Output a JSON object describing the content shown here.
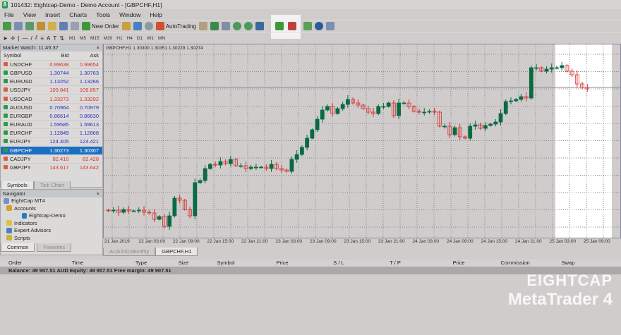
{
  "window": {
    "title": "101432: Eightcap-Demo - Demo Account - [GBPCHF,H1]"
  },
  "menu": [
    "File",
    "View",
    "Insert",
    "Charts",
    "Tools",
    "Window",
    "Help"
  ],
  "toolbar": {
    "new_order": "New Order",
    "autotrading": "AutoTrading",
    "timeframes": [
      "M1",
      "M5",
      "M15",
      "M30",
      "H1",
      "H4",
      "D1",
      "W1",
      "MN"
    ]
  },
  "market_watch": {
    "title": "Market Watch: 11:45:37",
    "columns": [
      "Symbol",
      "Bid",
      "Ask"
    ],
    "rows": [
      {
        "symbol": "USDCHF",
        "bid": "0.99638",
        "ask": "0.99654",
        "dir": "down"
      },
      {
        "symbol": "GBPUSD",
        "bid": "1.30744",
        "ask": "1.30763",
        "dir": "up"
      },
      {
        "symbol": "EURUSD",
        "bid": "1.13252",
        "ask": "1.13266",
        "dir": "up"
      },
      {
        "symbol": "USDJPY",
        "bid": "109.841",
        "ask": "109.857",
        "dir": "down"
      },
      {
        "symbol": "USDCAD",
        "bid": "1.33273",
        "ask": "1.33292",
        "dir": "down"
      },
      {
        "symbol": "AUDUSD",
        "bid": "0.70964",
        "ask": "0.70979",
        "dir": "up"
      },
      {
        "symbol": "EURGBP",
        "bid": "0.86614",
        "ask": "0.86630",
        "dir": "up"
      },
      {
        "symbol": "EURAUD",
        "bid": "1.59585",
        "ask": "1.59613",
        "dir": "up"
      },
      {
        "symbol": "EURCHF",
        "bid": "1.12849",
        "ask": "1.12868",
        "dir": "up"
      },
      {
        "symbol": "EURJPY",
        "bid": "124.405",
        "ask": "124.421",
        "dir": "up"
      },
      {
        "symbol": "GBPCHF",
        "bid": "1.30273",
        "ask": "1.30307",
        "dir": "up",
        "selected": true
      },
      {
        "symbol": "CADJPY",
        "bid": "82.410",
        "ask": "82.428",
        "dir": "down"
      },
      {
        "symbol": "GBPJPY",
        "bid": "143.617",
        "ask": "143.642",
        "dir": "down"
      }
    ],
    "tabs": [
      "Symbols",
      "Tick Chart"
    ]
  },
  "navigator": {
    "title": "Navigator",
    "items": [
      "EightCap MT4",
      "Accounts",
      "Eightcap-Demo",
      "Indicators",
      "Expert Advisors",
      "Scripts"
    ],
    "tabs": [
      "Common",
      "Favorites"
    ]
  },
  "chart": {
    "label": "GBPCHF,H1  1.30300 1.30351 1.30229 1.30274",
    "time_labels": [
      "21 Jan 2019",
      "22 Jan 03:00",
      "22 Jan 09:00",
      "22 Jan 15:00",
      "22 Jan 21:00",
      "23 Jan 03:00",
      "23 Jan 09:00",
      "23 Jan 15:00",
      "23 Jan 21:00",
      "24 Jan 03:00",
      "24 Jan 09:00",
      "24 Jan 15:00",
      "24 Jan 21:00",
      "25 Jan 03:00",
      "25 Jan 09:00"
    ],
    "tabs": [
      "AUS200,Monthly",
      "GBPCHF,H1"
    ],
    "colors": {
      "bull": "#0a6b43",
      "bear": "#d83030",
      "background": "#cfcccb"
    },
    "closes": [
      1.29409,
      1.29414,
      1.29399,
      1.29419,
      1.29409,
      1.29409,
      1.29414,
      1.29399,
      1.29394,
      1.29349,
      1.29369,
      1.29299,
      1.29374,
      1.29499,
      1.29484,
      1.29419,
      1.29374,
      1.29609,
      1.29624,
      1.29709,
      1.29739,
      1.29734,
      1.29759,
      1.29744,
      1.29774,
      1.29729,
      1.29729,
      1.29709,
      1.29719,
      1.29719,
      1.29719,
      1.29709,
      1.29739,
      1.29709,
      1.29699,
      1.29689,
      1.29774,
      1.29809,
      1.29859,
      1.29924,
      1.29984,
      1.30059,
      1.30124,
      1.30149,
      1.30099,
      1.30134,
      1.30164,
      1.30199,
      1.30174,
      1.30159,
      1.30134,
      1.30109,
      1.30099,
      1.30149,
      1.30149,
      1.30174,
      1.30084,
      1.30174,
      1.30174,
      1.30149,
      1.30114,
      1.30109,
      1.30109,
      1.30114,
      1.30109,
      1.30009,
      1.30009,
      1.29949,
      1.29999,
      1.29934,
      1.29924,
      1.30009,
      1.30019,
      1.29994,
      1.30014,
      1.30024,
      1.30039,
      1.30099,
      1.30184,
      1.30189,
      1.30199,
      1.30219,
      1.30209,
      1.30424,
      1.30424,
      1.30399,
      1.30414,
      1.30424,
      1.30424,
      1.30439,
      1.30399,
      1.30374,
      1.30309,
      1.30284,
      1.30274
    ]
  },
  "terminal": {
    "columns": [
      "Order",
      "Time",
      "Type",
      "Size",
      "Symbol",
      "Price",
      "S / L",
      "T / P",
      "Price",
      "Commission",
      "Swap"
    ],
    "balance": "Balance: 49 907.51 AUD  Equity: 49 907.51  Free margin: 49 907.51"
  },
  "watermark": {
    "brand": "EIGHTCAP",
    "product": "MetaTrader 4"
  }
}
